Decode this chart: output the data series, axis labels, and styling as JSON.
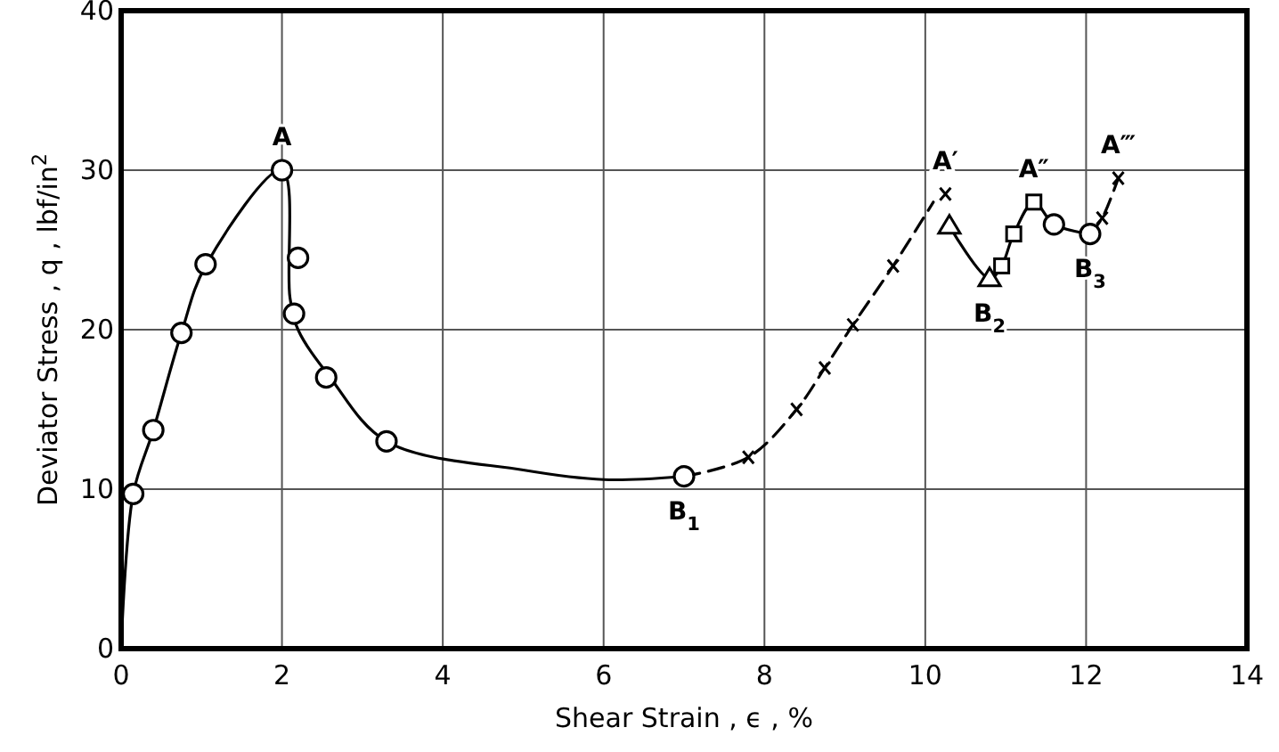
{
  "chart_data": {
    "type": "line",
    "xlabel": "Shear Strain , ϵ , %",
    "ylabel": "Deviator Stress , q , lbf/in$^{2}$",
    "xlim": [
      0,
      14
    ],
    "ylim": [
      0,
      40
    ],
    "xticks": [
      0,
      2,
      4,
      6,
      8,
      10,
      12,
      14
    ],
    "yticks": [
      0,
      10,
      20,
      30,
      40
    ],
    "grid": true,
    "series": [
      {
        "color": "#000000",
        "marker": "none",
        "line_style": "solid",
        "x": [
          0,
          0.15,
          0.4,
          0.75,
          1.05,
          2.0,
          2.1,
          2.2,
          2.6,
          3.3,
          5,
          6,
          7.0
        ],
        "values": [
          0,
          9.7,
          13.7,
          19.8,
          24,
          30,
          22,
          20,
          17,
          13,
          11.2,
          10.6,
          10.8
        ]
      },
      {
        "color": "#000000",
        "marker": "none",
        "line_style": "dashed",
        "x": [
          7.0,
          7.8,
          8.4,
          8.75,
          9.1,
          9.6,
          10.1
        ],
        "values": [
          10.8,
          12,
          15,
          17.6,
          20.3,
          24,
          28
        ]
      },
      {
        "color": "#000000",
        "marker": "none",
        "line_style": "solid",
        "x": [
          10.3,
          10.8,
          10.95,
          11.1,
          11.35,
          11.6,
          12.05
        ],
        "values": [
          26.5,
          23.2,
          24,
          26,
          28,
          26.6,
          26
        ]
      },
      {
        "color": "#000000",
        "marker": "none",
        "line_style": "dashed",
        "x": [
          12.05,
          12.2,
          12.4
        ],
        "values": [
          26,
          27,
          29.5
        ]
      },
      {
        "type": "scatter",
        "color": "#000000",
        "marker": "circle",
        "x": [
          0.15,
          0.4,
          0.75,
          1.05,
          2.0,
          2.2,
          2.15,
          2.55,
          3.3,
          7.0
        ],
        "values": [
          9.7,
          13.7,
          19.8,
          24.1,
          30,
          24.5,
          21,
          17,
          13,
          10.8
        ]
      },
      {
        "type": "scatter",
        "color": "#000000",
        "marker": "cross",
        "x": [
          7.8,
          8.4,
          8.75,
          9.1,
          9.6,
          10.25,
          12.2,
          12.4
        ],
        "values": [
          12,
          15,
          17.6,
          20.3,
          24,
          28.5,
          27,
          29.5
        ]
      },
      {
        "type": "scatter",
        "color": "#000000",
        "marker": "triangle",
        "x": [
          10.3,
          10.8
        ],
        "values": [
          26.5,
          23.2
        ]
      },
      {
        "type": "scatter",
        "color": "#000000",
        "marker": "square",
        "x": [
          10.95,
          11.1,
          11.35
        ],
        "values": [
          24,
          26,
          28
        ]
      },
      {
        "type": "scatter",
        "color": "#000000",
        "marker": "circle",
        "x": [
          11.6,
          12.05
        ],
        "values": [
          26.6,
          26
        ]
      }
    ],
    "annotations": [
      {
        "text": "A",
        "x": 2.0,
        "y": 30
      },
      {
        "text": "B$_{1}$",
        "x": 7.0,
        "y": 10.8
      },
      {
        "text": "A′",
        "x": 10.25,
        "y": 28.5
      },
      {
        "text": "B$_{2}$",
        "x": 10.8,
        "y": 23.2
      },
      {
        "text": "A″",
        "x": 11.35,
        "y": 28
      },
      {
        "text": "B$_{3}$",
        "x": 12.05,
        "y": 26
      },
      {
        "text": "A‴",
        "x": 12.4,
        "y": 29.5
      }
    ]
  }
}
